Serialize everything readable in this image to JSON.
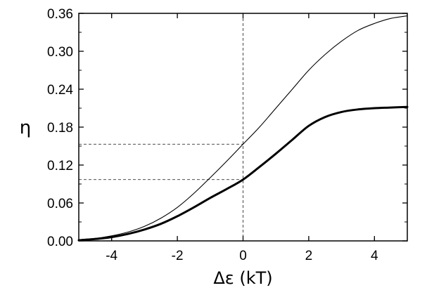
{
  "chart_data": {
    "type": "line",
    "title": "",
    "xlabel": "Δε (kT)",
    "ylabel": "η",
    "xlim": [
      -5,
      5
    ],
    "ylim": [
      0,
      0.36
    ],
    "x_ticks": [
      -4,
      -2,
      0,
      2,
      4
    ],
    "x_tick_labels": [
      "-4",
      "-2",
      "0",
      "2",
      "4"
    ],
    "y_ticks": [
      0,
      0.06,
      0.12,
      0.18,
      0.24,
      0.3,
      0.36
    ],
    "y_tick_labels": [
      "0.00",
      "0.06",
      "0.12",
      "0.18",
      "0.24",
      "0.30",
      "0.36"
    ],
    "grid": false,
    "legend": "none",
    "series": [
      {
        "style": "thin",
        "color": "#000000",
        "x": [
          -5,
          -4.5,
          -4,
          -3.5,
          -3,
          -2.5,
          -2,
          -1.5,
          -1,
          -0.5,
          0,
          0.5,
          1,
          1.5,
          2,
          2.5,
          3,
          3.5,
          4,
          4.5,
          5
        ],
        "y": [
          0.002,
          0.004,
          0.008,
          0.014,
          0.023,
          0.036,
          0.053,
          0.075,
          0.1,
          0.126,
          0.153,
          0.18,
          0.21,
          0.24,
          0.27,
          0.295,
          0.316,
          0.333,
          0.344,
          0.352,
          0.356
        ]
      },
      {
        "style": "thick",
        "color": "#000000",
        "x": [
          -5,
          -4.5,
          -4,
          -3.5,
          -3,
          -2.5,
          -2,
          -1.5,
          -1,
          -0.5,
          0,
          0.5,
          1,
          1.5,
          2,
          2.5,
          3,
          3.5,
          4,
          4.5,
          5
        ],
        "y": [
          0.001,
          0.003,
          0.006,
          0.011,
          0.018,
          0.027,
          0.039,
          0.053,
          0.068,
          0.082,
          0.097,
          0.117,
          0.138,
          0.16,
          0.182,
          0.196,
          0.204,
          0.208,
          0.21,
          0.211,
          0.212
        ]
      }
    ],
    "reference_lines": [
      {
        "orientation": "vertical",
        "x": 0
      },
      {
        "orientation": "horizontal",
        "y": 0.153,
        "x_from": -5,
        "x_to": 0
      },
      {
        "orientation": "horizontal",
        "y": 0.097,
        "x_from": -5,
        "x_to": 0
      }
    ]
  }
}
